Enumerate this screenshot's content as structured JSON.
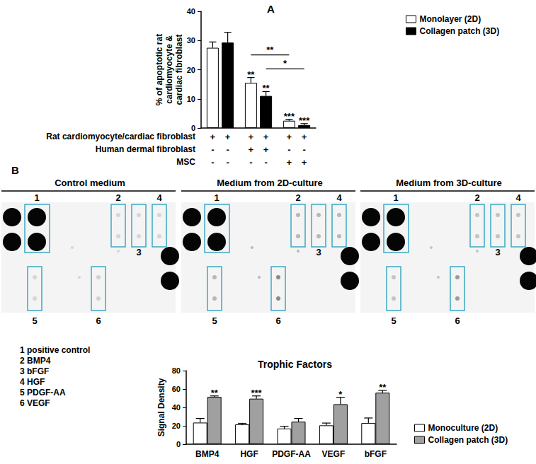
{
  "chart_data": [
    {
      "type": "bar",
      "panel": "A",
      "ylabel": "% of apoptotic rat\ncardiomyocyte &\ncardiac fibroblast",
      "categories": [
        null,
        null,
        null
      ],
      "ylim": [
        0,
        40
      ],
      "yticks": [
        0,
        10,
        20,
        30,
        40
      ],
      "grid": false,
      "legend": "right",
      "series": [
        {
          "name": "Monolayer (2D)",
          "color": "#ffffff",
          "values": [
            27.5,
            15.5,
            2.5
          ],
          "errors": [
            2,
            1.8,
            0.5
          ],
          "significance": [
            null,
            "**",
            "***"
          ]
        },
        {
          "name": "Collagen patch (3D)",
          "color": "#000000",
          "values": [
            29.3,
            11,
            1
          ],
          "errors": [
            3.5,
            1.5,
            0.5
          ],
          "significance": [
            null,
            "**",
            "***"
          ]
        }
      ],
      "comparisons": [
        {
          "series": 0,
          "from": 1,
          "to": 2,
          "label": "**"
        },
        {
          "series": 1,
          "from": 1,
          "to": 2,
          "label": "*"
        }
      ],
      "conditions": [
        {
          "label": "Rat cardiomyocyte/cardiac fibroblast",
          "signs": [
            "+",
            "+",
            "+",
            "+",
            "+",
            "+"
          ]
        },
        {
          "label": "Human dermal fibroblast",
          "signs": [
            "-",
            "-",
            "+",
            "+",
            "-",
            "-"
          ]
        },
        {
          "label": "MSC",
          "signs": [
            "-",
            "-",
            "-",
            "-",
            "+",
            "+"
          ]
        }
      ]
    },
    {
      "type": "bar",
      "title": "Trophic Factors",
      "ylabel": "Signal Density",
      "categories": [
        "BMP4",
        "HGF",
        "PDGF-AA",
        "VEGF",
        "bFGF"
      ],
      "ylim": [
        0,
        80
      ],
      "yticks": [
        0,
        20,
        40,
        60,
        80
      ],
      "grid": false,
      "legend": "bottom-right",
      "series": [
        {
          "name": "Monoculture (2D)",
          "color": "#ffffff",
          "values": [
            23.5,
            21.5,
            17,
            20.5,
            23
          ],
          "errors": [
            4.5,
            1.2,
            2.5,
            2.5,
            5.5
          ],
          "significance": [
            null,
            null,
            null,
            null,
            null
          ]
        },
        {
          "name": "Collagen patch (3D)",
          "color": "#a0a0a0",
          "values": [
            51.5,
            49.5,
            24.5,
            43.5,
            56
          ],
          "errors": [
            1,
            3,
            3.5,
            7.5,
            2.5
          ],
          "significance": [
            "**",
            "***",
            null,
            "*",
            "**"
          ]
        }
      ]
    }
  ],
  "blot": {
    "panel": "B",
    "titles": [
      "Control medium",
      "Medium from 2D-culture",
      "Medium from 3D-culture"
    ],
    "spot_labels": [
      "1",
      "2",
      "3",
      "4",
      "5",
      "6"
    ],
    "key": [
      "1 positive control",
      "2 BMP4",
      "3 bFGF",
      "4 HGF",
      "5 PDGF-AA",
      "6 VEGF"
    ]
  }
}
